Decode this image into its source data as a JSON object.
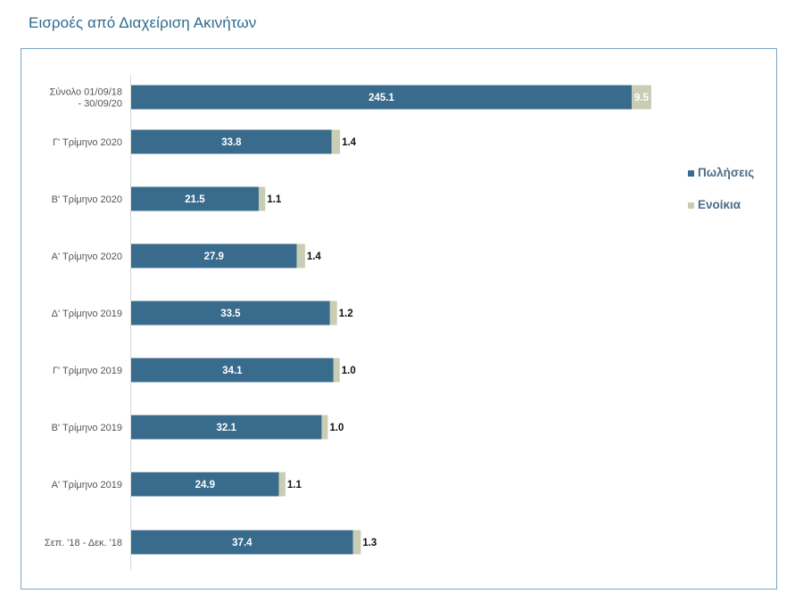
{
  "title": "Εισροές από Διαχείριση Ακινήτων",
  "colors": {
    "sales": "#396b8d",
    "rents": "#c8cdb3",
    "title": "#2e6a8e",
    "frame": "#7ea6c2"
  },
  "chart_data": {
    "type": "bar",
    "orientation": "horizontal",
    "stacked": true,
    "categories": [
      "Σύνολο 01/09/18 - 30/09/20",
      "Γ' Τρίμηνο 2020",
      "Β' Τρίμηνο 2020",
      "Α' Τρίμηνο 2020",
      "Δ' Τρίμηνο 2019",
      "Γ' Τρίμηνο 2019",
      "Β' Τρίμηνο 2019",
      "Α' Τρίμηνο 2019",
      "Σεπ. '18 - Δεκ. '18"
    ],
    "category_lines": [
      [
        "Σύνολο 01/09/18",
        "- 30/09/20"
      ],
      [
        "Γ' Τρίμηνο 2020"
      ],
      [
        "Β' Τρίμηνο 2020"
      ],
      [
        "Α' Τρίμηνο 2020"
      ],
      [
        "Δ' Τρίμηνο 2019"
      ],
      [
        "Γ' Τρίμηνο 2019"
      ],
      [
        "Β' Τρίμηνο 2019"
      ],
      [
        "Α' Τρίμηνο 2019"
      ],
      [
        "Σεπ. '18 - Δεκ. '18"
      ]
    ],
    "series": [
      {
        "name": "Πωλήσεις",
        "color": "#396b8d",
        "values": [
          245.1,
          33.8,
          21.5,
          27.9,
          33.5,
          34.1,
          32.1,
          24.9,
          37.4
        ],
        "labels": [
          "245.1",
          "33.8",
          "21.5",
          "27.9",
          "33.5",
          "34.1",
          "32.1",
          "24.9",
          "37.4"
        ]
      },
      {
        "name": "Ενοίκια",
        "color": "#c8cdb3",
        "values": [
          9.5,
          1.4,
          1.1,
          1.4,
          1.2,
          1.0,
          1.0,
          1.1,
          1.3
        ],
        "labels": [
          "9.5",
          "1.4",
          "1.1",
          "1.4",
          "1.2",
          "1.0",
          "1.0",
          "1.1",
          "1.3"
        ]
      }
    ],
    "legend_position": "right",
    "grid": false,
    "axis_break_on_first_bar": true
  }
}
